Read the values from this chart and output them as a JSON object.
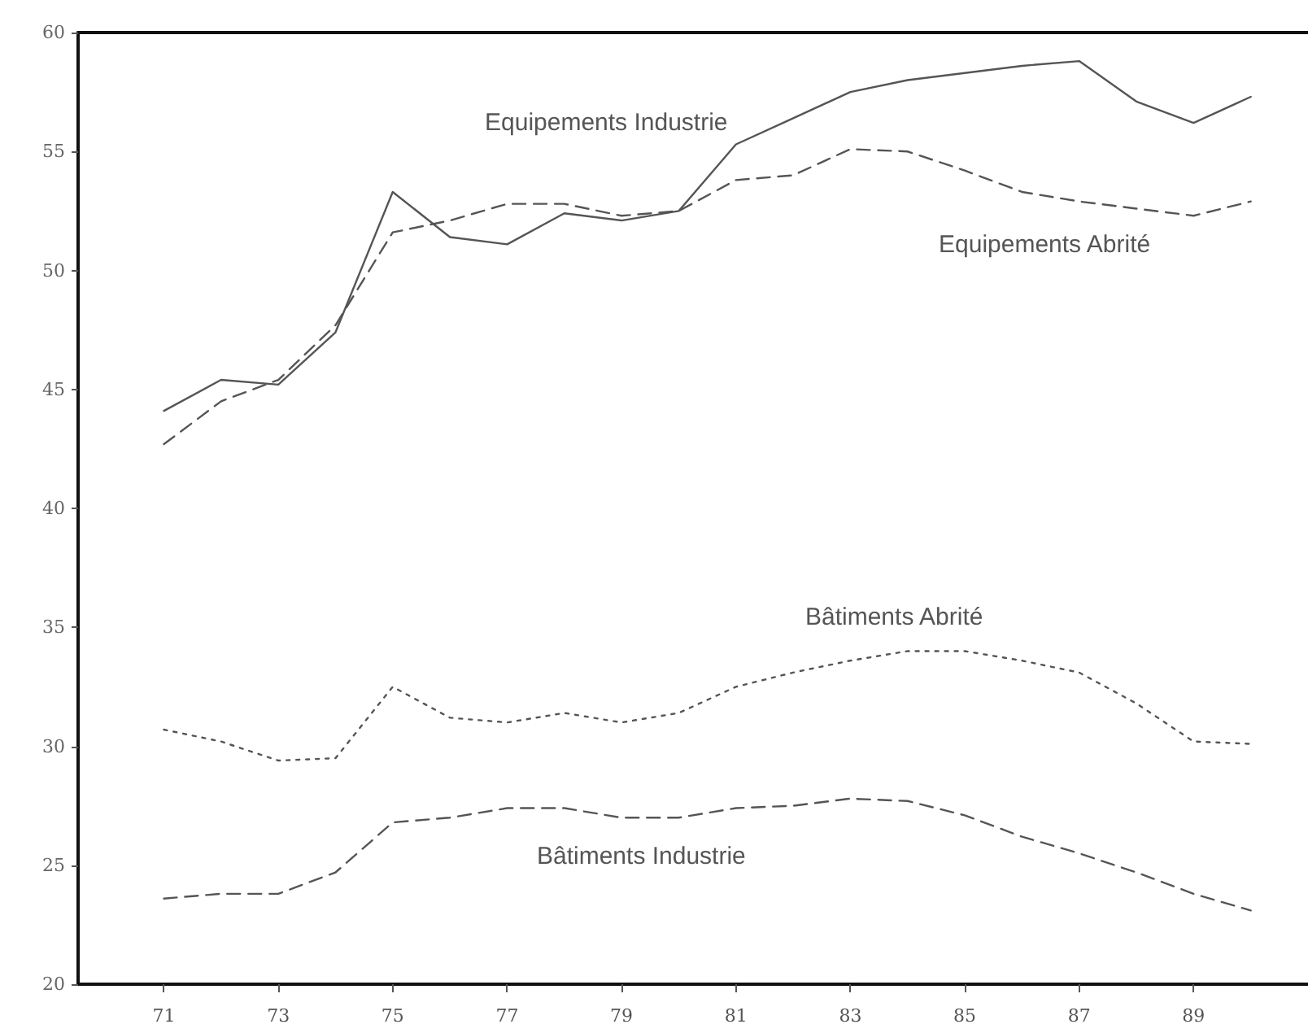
{
  "chart_data": {
    "type": "line",
    "x": [
      71,
      72,
      73,
      74,
      75,
      76,
      77,
      78,
      79,
      80,
      81,
      82,
      83,
      84,
      85,
      86,
      87,
      88,
      89,
      90
    ],
    "series": [
      {
        "name": "Equipements Industrie",
        "color": "#555555",
        "line_style": "solid",
        "values": [
          44.1,
          45.4,
          45.2,
          47.4,
          53.3,
          51.4,
          51.1,
          52.4,
          52.1,
          52.5,
          55.3,
          56.4,
          57.5,
          58.0,
          58.3,
          58.6,
          58.8,
          57.1,
          56.2,
          57.3
        ]
      },
      {
        "name": "Equipements Abrité",
        "color": "#555555",
        "line_style": "dashed",
        "values": [
          42.7,
          44.5,
          45.4,
          47.7,
          51.6,
          52.1,
          52.8,
          52.8,
          52.3,
          52.5,
          53.8,
          54.0,
          55.1,
          55.0,
          54.2,
          53.3,
          52.9,
          52.6,
          52.3,
          52.9
        ]
      },
      {
        "name": "Bâtiments Abrité",
        "color": "#555555",
        "line_style": "dotted",
        "values": [
          30.7,
          30.2,
          29.4,
          29.5,
          32.5,
          31.2,
          31.0,
          31.4,
          31.0,
          31.4,
          32.5,
          33.1,
          33.6,
          34.0,
          34.0,
          33.6,
          33.1,
          31.8,
          30.2,
          30.1
        ]
      },
      {
        "name": "Bâtiments Industrie",
        "color": "#555555",
        "line_style": "dashed",
        "values": [
          23.6,
          23.8,
          23.8,
          24.7,
          26.8,
          27.0,
          27.4,
          27.4,
          27.0,
          27.0,
          27.4,
          27.5,
          27.8,
          27.7,
          27.1,
          26.2,
          25.5,
          24.7,
          23.8,
          23.1
        ]
      }
    ],
    "xlim": [
      69.5,
      91
    ],
    "xticks": [
      71,
      73,
      75,
      77,
      79,
      81,
      83,
      85,
      87,
      89
    ],
    "ylim": [
      20,
      60
    ],
    "yticks": [
      20,
      25,
      30,
      35,
      40,
      45,
      50,
      55,
      60
    ],
    "grid": false,
    "legend": false,
    "marker": "none"
  }
}
